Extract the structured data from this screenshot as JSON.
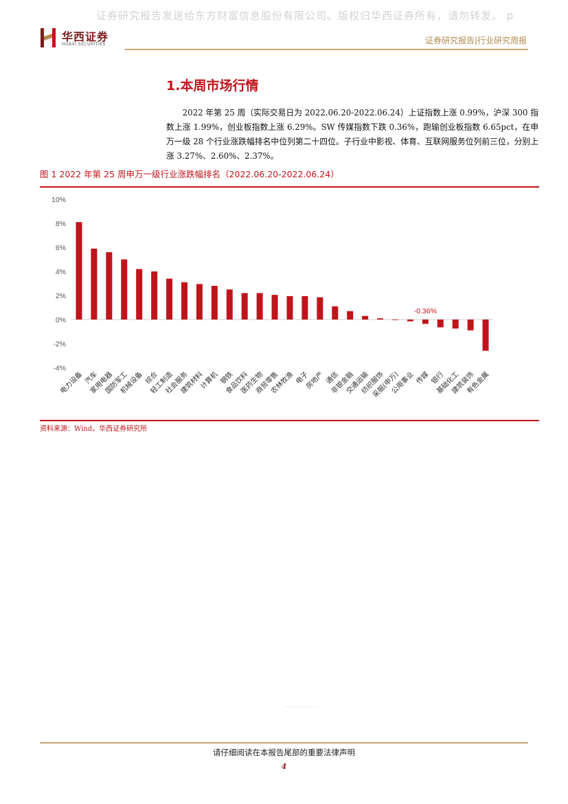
{
  "watermark": "证券研究报告发送给东方财富信息股份有限公司。版权归华西证券所有，请勿转发。 p",
  "logo": {
    "name_cn": "华西证券",
    "name_en": "HUAXI SECURITIES"
  },
  "header": {
    "tag": "证券研究报告|行业研究周报"
  },
  "section": {
    "title": "1.本周市场行情"
  },
  "paragraph": "2022 年第 25 周（实际交易日为 2022.06.20-2022.06.24）上证指数上涨 0.99%，沪深 300 指数上涨 1.99%，创业板指数上涨 6.29%。SW 传媒指数下跌 0.36%，跑输创业板指数 6.65pct，在申万一级 28 个行业涨跌幅排名中位列第二十四位。子行业中影视、体育、互联网服务位列前三位，分别上涨 3.27%、2.60%、2.37%。",
  "figure": {
    "title": "图 1 2022 年第 25 周申万一级行业涨跌幅排名（2022.06.20-2022.06.24）"
  },
  "source": "资料来源：Wind，华西证券研究所",
  "footer": {
    "notice": "请仔细阅读在本报告尾部的重要法律声明",
    "page": "4"
  },
  "colors": {
    "bar": "#c0141c",
    "accent_gold": "#c8a56e",
    "brand": "#7a1e1e"
  },
  "chart_data": {
    "type": "bar",
    "title": "",
    "xlabel": "",
    "ylabel": "",
    "ylim": [
      -4,
      10
    ],
    "yticks": [
      -4,
      -2,
      0,
      2,
      4,
      6,
      8,
      10
    ],
    "ytick_labels": [
      "-4%",
      "-2%",
      "0%",
      "2%",
      "4%",
      "6%",
      "8%",
      "10%"
    ],
    "grid": false,
    "categories": [
      "电力设备",
      "汽车",
      "家用电器",
      "国防军工",
      "机械设备",
      "综合",
      "轻工制造",
      "社会服务",
      "建筑材料",
      "计算机",
      "钢铁",
      "食品饮料",
      "医药生物",
      "商贸零售",
      "农林牧渔",
      "电子",
      "房地产",
      "通信",
      "非银金融",
      "交通运输",
      "纺织服饰",
      "采掘(申万)",
      "公用事业",
      "传媒",
      "银行",
      "基础化工",
      "建筑装饰",
      "有色金属"
    ],
    "values": [
      8.1,
      5.9,
      5.6,
      5.0,
      4.2,
      4.0,
      3.4,
      3.1,
      2.95,
      2.8,
      2.5,
      2.2,
      2.2,
      2.05,
      1.95,
      1.95,
      1.85,
      1.1,
      0.7,
      0.3,
      0.1,
      0.0,
      -0.15,
      -0.36,
      -0.65,
      -0.75,
      -0.9,
      -2.6
    ],
    "annotations": [
      {
        "category": "传媒",
        "text": "-0.36%"
      }
    ]
  }
}
